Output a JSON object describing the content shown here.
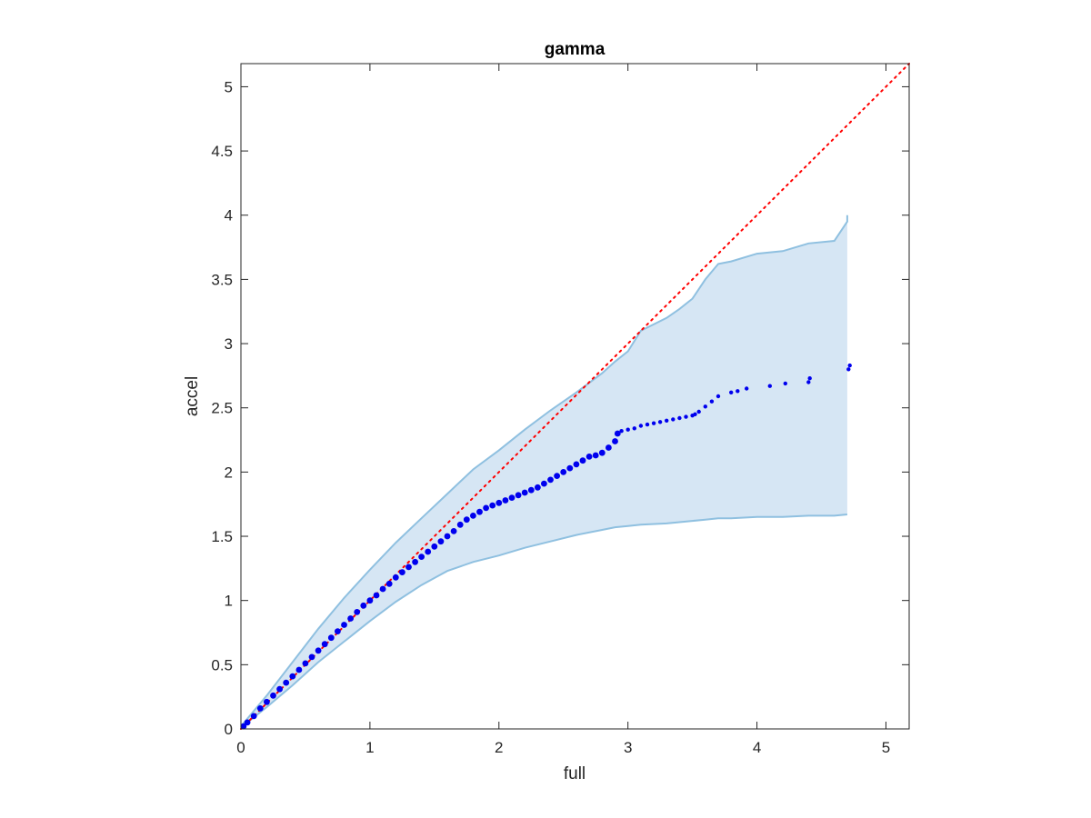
{
  "chart_data": {
    "type": "scatter",
    "title": "gamma",
    "xlabel": "full",
    "ylabel": "accel",
    "xlim": [
      0,
      5.18
    ],
    "ylim": [
      0,
      5.18
    ],
    "xticks": [
      0,
      1,
      2,
      3,
      4,
      5
    ],
    "xtick_labels": [
      "0",
      "1",
      "2",
      "3",
      "4",
      "5"
    ],
    "yticks": [
      0,
      0.5,
      1,
      1.5,
      2,
      2.5,
      3,
      3.5,
      4,
      4.5,
      5
    ],
    "ytick_labels": [
      "0",
      "0.5",
      "1",
      "1.5",
      "2",
      "2.5",
      "3",
      "3.5",
      "4",
      "4.5",
      "5"
    ],
    "grid": false,
    "box": true,
    "colors": {
      "points": "#0000ee",
      "band_fill": "#d6e6f4",
      "band_edge": "#8fc0e0",
      "reference": "#ff0000",
      "axes": "#262626"
    },
    "reference_line": {
      "style": "dotted",
      "x": [
        0,
        5.18
      ],
      "y": [
        0,
        5.18
      ]
    },
    "envelope": {
      "x": [
        0,
        0.2,
        0.4,
        0.6,
        0.8,
        1.0,
        1.2,
        1.4,
        1.6,
        1.8,
        2.0,
        2.2,
        2.4,
        2.6,
        2.8,
        2.9,
        3.0,
        3.1,
        3.3,
        3.4,
        3.5,
        3.6,
        3.7,
        3.75,
        3.8,
        4.0,
        4.2,
        4.4,
        4.6,
        4.7,
        4.7
      ],
      "upper": [
        0.02,
        0.26,
        0.52,
        0.78,
        1.02,
        1.24,
        1.45,
        1.64,
        1.83,
        2.02,
        2.17,
        2.33,
        2.48,
        2.62,
        2.77,
        2.86,
        2.94,
        3.1,
        3.2,
        3.27,
        3.35,
        3.5,
        3.62,
        3.63,
        3.64,
        3.7,
        3.72,
        3.78,
        3.8,
        3.95,
        4.0
      ],
      "lower": [
        0.01,
        0.17,
        0.34,
        0.52,
        0.68,
        0.84,
        0.99,
        1.12,
        1.23,
        1.3,
        1.35,
        1.41,
        1.46,
        1.51,
        1.55,
        1.57,
        1.58,
        1.59,
        1.6,
        1.61,
        1.62,
        1.63,
        1.64,
        1.64,
        1.64,
        1.65,
        1.65,
        1.66,
        1.66,
        1.67,
        1.67
      ]
    },
    "series": [
      {
        "x": [
          0.02,
          0.05,
          0.1,
          0.15,
          0.2,
          0.25,
          0.3,
          0.35,
          0.4,
          0.45,
          0.5,
          0.55,
          0.6,
          0.65,
          0.7,
          0.75,
          0.8,
          0.85,
          0.9,
          0.95,
          1.0,
          1.05,
          1.1,
          1.15,
          1.2,
          1.25,
          1.3,
          1.35,
          1.4,
          1.45,
          1.5,
          1.55,
          1.6,
          1.65,
          1.7,
          1.75,
          1.8,
          1.85,
          1.9,
          1.95,
          2.0,
          2.05,
          2.1,
          2.15,
          2.2,
          2.25,
          2.3,
          2.35,
          2.4,
          2.45,
          2.5,
          2.55,
          2.6,
          2.65,
          2.7,
          2.75,
          2.8,
          2.85,
          2.9,
          2.92,
          2.95,
          3.0,
          3.05,
          3.1,
          3.15,
          3.2,
          3.25,
          3.3,
          3.35,
          3.4,
          3.45,
          3.5,
          3.52,
          3.55,
          3.6,
          3.65,
          3.7,
          3.8,
          3.85,
          3.92,
          4.1,
          4.22,
          4.4,
          4.41,
          4.71,
          4.72
        ],
        "y": [
          0.02,
          0.05,
          0.1,
          0.16,
          0.21,
          0.26,
          0.31,
          0.36,
          0.41,
          0.46,
          0.51,
          0.56,
          0.61,
          0.66,
          0.71,
          0.76,
          0.81,
          0.86,
          0.91,
          0.96,
          1.0,
          1.04,
          1.09,
          1.13,
          1.18,
          1.22,
          1.26,
          1.3,
          1.34,
          1.38,
          1.42,
          1.46,
          1.5,
          1.54,
          1.59,
          1.63,
          1.66,
          1.69,
          1.72,
          1.74,
          1.76,
          1.78,
          1.8,
          1.82,
          1.84,
          1.86,
          1.88,
          1.91,
          1.94,
          1.97,
          2.0,
          2.03,
          2.06,
          2.09,
          2.12,
          2.13,
          2.15,
          2.19,
          2.24,
          2.3,
          2.32,
          2.33,
          2.34,
          2.36,
          2.37,
          2.38,
          2.39,
          2.4,
          2.41,
          2.42,
          2.43,
          2.44,
          2.45,
          2.47,
          2.51,
          2.55,
          2.59,
          2.62,
          2.63,
          2.65,
          2.67,
          2.69,
          2.7,
          2.73,
          2.8,
          2.83
        ]
      }
    ]
  }
}
